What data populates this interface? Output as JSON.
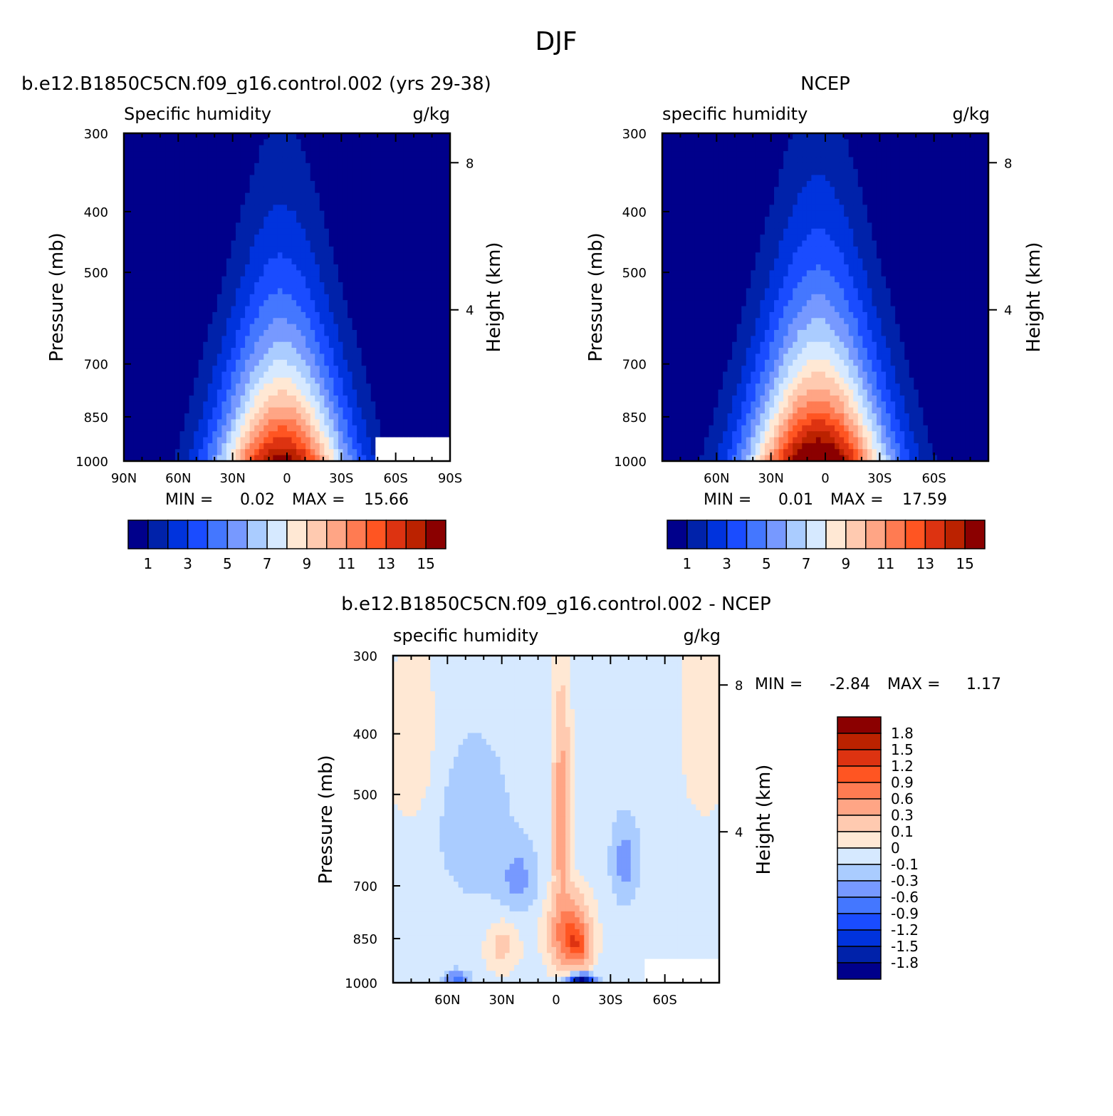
{
  "figure_title": "DJF",
  "colors": {
    "abs": [
      "#00008b",
      "#0022aa",
      "#0033dd",
      "#1a4cff",
      "#4477ff",
      "#7799ff",
      "#aaccff",
      "#d6e9ff",
      "#ffe8d4",
      "#ffcab0",
      "#ffa585",
      "#ff7b52",
      "#ff5522",
      "#dd3311",
      "#bb2200",
      "#8b0000"
    ],
    "diff": [
      "#00008b",
      "#0022aa",
      "#0033dd",
      "#1a4cff",
      "#4477ff",
      "#7799ff",
      "#aaccff",
      "#d6e9ff",
      "#ffe8d4",
      "#ffcab0",
      "#ffa585",
      "#ff7b52",
      "#ff5522",
      "#dd3311",
      "#bb2200",
      "#8b0000"
    ]
  },
  "chart_data": [
    {
      "type": "contour",
      "panel": "model",
      "title": "b.e12.B1850C5CN.f09_g16.control.002 (yrs 29-38)",
      "variable": "Specific humidity",
      "units": "g/kg",
      "ylabel": "Pressure (mb)",
      "ylabel_right": "Height (km)",
      "y_ticks": [
        "300",
        "400",
        "500",
        "700",
        "850",
        "1000"
      ],
      "y_right_ticks": [
        "8",
        "4"
      ],
      "x_ticks": [
        "90N",
        "60N",
        "30N",
        "0",
        "30S",
        "60S",
        "90S"
      ],
      "stats": {
        "min_label": "MIN =",
        "min": "0.02",
        "max_label": "MAX =",
        "max": "15.66"
      },
      "colorbar_labels": [
        "1",
        "3",
        "5",
        "7",
        "9",
        "11",
        "13",
        "15"
      ],
      "field": {
        "peak": 15.66,
        "center_lat": 3,
        "half_width": 30,
        "scale_height": 0.38
      }
    },
    {
      "type": "contour",
      "panel": "obs",
      "title": "NCEP",
      "variable": "specific humidity",
      "units": "g/kg",
      "ylabel": "Pressure (mb)",
      "ylabel_right": "Height (km)",
      "y_ticks": [
        "300",
        "400",
        "500",
        "700",
        "850",
        "1000"
      ],
      "y_right_ticks": [
        "8",
        "4"
      ],
      "x_ticks": [
        "60N",
        "30N",
        "0",
        "30S",
        "60S"
      ],
      "stats": {
        "min_label": "MIN =",
        "min": "0.01",
        "max_label": "MAX =",
        "max": "17.59"
      },
      "colorbar_labels": [
        "1",
        "3",
        "5",
        "7",
        "9",
        "11",
        "13",
        "15"
      ],
      "field": {
        "peak": 17.59,
        "center_lat": 4,
        "half_width": 32,
        "scale_height": 0.4
      }
    },
    {
      "type": "contour",
      "panel": "diff",
      "title": "b.e12.B1850C5CN.f09_g16.control.002 - NCEP",
      "variable": "specific humidity",
      "units": "g/kg",
      "ylabel": "Pressure (mb)",
      "ylabel_right": "Height (km)",
      "y_ticks": [
        "300",
        "400",
        "500",
        "700",
        "850",
        "1000"
      ],
      "y_right_ticks": [
        "8",
        "4"
      ],
      "x_ticks": [
        "60N",
        "30N",
        "0",
        "30S",
        "60S"
      ],
      "stats": {
        "min_label": "MIN =",
        "min": "-2.84",
        "max_label": "MAX =",
        "max": "1.17"
      },
      "colorbar_labels": [
        "1.8",
        "1.5",
        "1.2",
        "0.9",
        "0.6",
        "0.3",
        "0.1",
        "0",
        "-0.1",
        "-0.3",
        "-0.6",
        "-0.9",
        "-1.2",
        "-1.5",
        "-1.8"
      ]
    }
  ]
}
